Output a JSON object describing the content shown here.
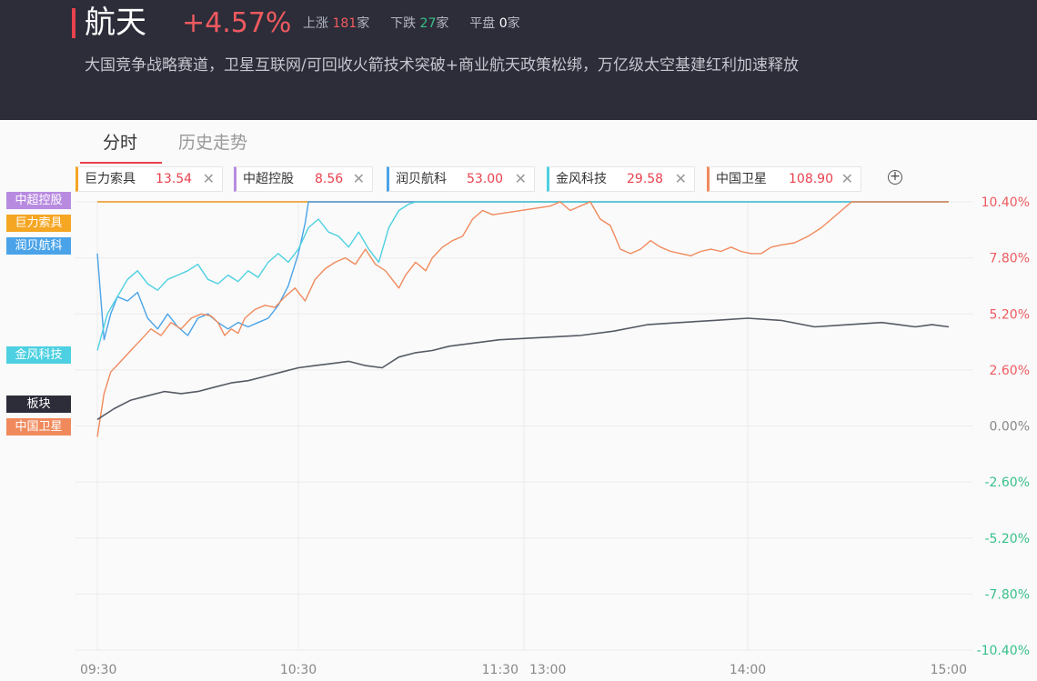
{
  "header": {
    "title": "航天",
    "change": "+4.57%",
    "up_label": "上涨",
    "up_count": "181",
    "unit": "家",
    "down_label": "下跌",
    "down_count": "27",
    "flat_label": "平盘",
    "flat_count": "0",
    "description": "大国竞争战略赛道，卫星互联网/可回收火箭技术突破+商业航天政策松绑，万亿级太空基建红利加速释放"
  },
  "tabs": [
    {
      "label": "分时"
    },
    {
      "label": "历史走势"
    }
  ],
  "colors": {
    "accent": "#e8424e",
    "up": "#ee5a5f",
    "down": "#38c08a",
    "sector_line": "#555a65"
  },
  "stock_chips": [
    {
      "name": "巨力索具",
      "price": "13.54",
      "color": "#f5a623"
    },
    {
      "name": "中超控股",
      "price": "8.56",
      "color": "#b88be0"
    },
    {
      "name": "润贝航科",
      "price": "53.00",
      "color": "#4aa3e8"
    },
    {
      "name": "金风科技",
      "price": "29.58",
      "color": "#4dd0e1"
    },
    {
      "name": "中国卫星",
      "price": "108.90",
      "color": "#f08a5d"
    }
  ],
  "add_icon": "plus-circle-icon",
  "close_icon": "close-x-icon",
  "chart_data": {
    "type": "line",
    "y_unit": "%",
    "ylim": [
      -10.4,
      10.4
    ],
    "y_ticks": [
      "10.40%",
      "7.80%",
      "5.20%",
      "2.60%",
      "0.00%",
      "-2.60%",
      "-5.20%",
      "-7.80%",
      "-10.40%"
    ],
    "x_ticks": [
      "09:30",
      "10:30",
      "11:30",
      "13:00",
      "14:00",
      "15:00"
    ],
    "grid": true,
    "series_labels": [
      {
        "text": "中超控股",
        "color": "#b88be0",
        "value": 10.4
      },
      {
        "text": "巨力索具",
        "color": "#f5a623",
        "value": 10.4
      },
      {
        "text": "润贝航科",
        "color": "#4aa3e8",
        "value": 10.4
      },
      {
        "text": "金风科技",
        "color": "#4dd0e1",
        "value": 10.4
      },
      {
        "text": "板块",
        "color": "#2c2d39",
        "value": 4.57
      },
      {
        "text": "中国卫星",
        "color": "#f08a5d",
        "value": 10.4
      }
    ],
    "series": [
      {
        "name": "板块",
        "color": "#555a65",
        "points": [
          [
            0,
            0.3
          ],
          [
            5,
            0.8
          ],
          [
            10,
            1.2
          ],
          [
            15,
            1.4
          ],
          [
            20,
            1.6
          ],
          [
            25,
            1.5
          ],
          [
            30,
            1.6
          ],
          [
            35,
            1.8
          ],
          [
            40,
            2.0
          ],
          [
            45,
            2.1
          ],
          [
            50,
            2.3
          ],
          [
            55,
            2.5
          ],
          [
            60,
            2.7
          ],
          [
            65,
            2.8
          ],
          [
            70,
            2.9
          ],
          [
            75,
            3.0
          ],
          [
            80,
            2.8
          ],
          [
            85,
            2.7
          ],
          [
            90,
            3.2
          ],
          [
            95,
            3.4
          ],
          [
            100,
            3.5
          ],
          [
            105,
            3.7
          ],
          [
            110,
            3.8
          ],
          [
            115,
            3.9
          ],
          [
            120,
            4.0
          ],
          [
            130,
            4.2
          ],
          [
            140,
            4.4
          ],
          [
            150,
            4.7
          ],
          [
            160,
            4.8
          ],
          [
            170,
            4.9
          ],
          [
            180,
            5.0
          ],
          [
            190,
            4.9
          ],
          [
            200,
            4.6
          ],
          [
            210,
            4.7
          ],
          [
            220,
            4.8
          ],
          [
            225,
            4.7
          ],
          [
            230,
            4.6
          ],
          [
            235,
            4.7
          ],
          [
            240,
            4.6
          ]
        ]
      },
      {
        "name": "中国卫星",
        "color": "#f08a5d",
        "points": [
          [
            0,
            -0.5
          ],
          [
            2,
            1.5
          ],
          [
            4,
            2.5
          ],
          [
            7,
            3.0
          ],
          [
            10,
            3.5
          ],
          [
            13,
            4.0
          ],
          [
            16,
            4.5
          ],
          [
            19,
            4.2
          ],
          [
            22,
            4.8
          ],
          [
            25,
            4.5
          ],
          [
            28,
            5.0
          ],
          [
            31,
            5.2
          ],
          [
            34,
            5.1
          ],
          [
            36,
            4.8
          ],
          [
            38,
            4.2
          ],
          [
            40,
            4.5
          ],
          [
            42,
            4.3
          ],
          [
            44,
            5.0
          ],
          [
            47,
            5.4
          ],
          [
            50,
            5.6
          ],
          [
            53,
            5.5
          ],
          [
            56,
            6.0
          ],
          [
            59,
            6.4
          ],
          [
            62,
            5.8
          ],
          [
            65,
            6.8
          ],
          [
            68,
            7.3
          ],
          [
            71,
            7.6
          ],
          [
            74,
            7.8
          ],
          [
            77,
            7.5
          ],
          [
            80,
            8.2
          ],
          [
            83,
            7.5
          ],
          [
            86,
            7.2
          ],
          [
            88,
            6.8
          ],
          [
            90,
            6.4
          ],
          [
            92,
            7.0
          ],
          [
            95,
            7.6
          ],
          [
            98,
            7.2
          ],
          [
            100,
            7.8
          ],
          [
            103,
            8.3
          ],
          [
            106,
            8.6
          ],
          [
            109,
            8.8
          ],
          [
            112,
            9.6
          ],
          [
            115,
            10.0
          ],
          [
            118,
            9.8
          ],
          [
            121,
            10.2
          ],
          [
            124,
            10.4
          ],
          [
            127,
            10.0
          ],
          [
            130,
            10.2
          ],
          [
            133,
            10.4
          ],
          [
            136,
            9.6
          ],
          [
            139,
            9.3
          ],
          [
            142,
            8.2
          ],
          [
            145,
            8.0
          ],
          [
            148,
            8.2
          ],
          [
            151,
            8.6
          ],
          [
            154,
            8.3
          ],
          [
            157,
            8.1
          ],
          [
            160,
            8.0
          ],
          [
            163,
            7.9
          ],
          [
            166,
            8.1
          ],
          [
            169,
            8.2
          ],
          [
            172,
            8.1
          ],
          [
            175,
            8.3
          ],
          [
            178,
            8.1
          ],
          [
            181,
            8.0
          ],
          [
            184,
            8.0
          ],
          [
            187,
            8.3
          ],
          [
            190,
            8.4
          ],
          [
            194,
            8.5
          ],
          [
            198,
            8.8
          ],
          [
            202,
            9.2
          ],
          [
            205,
            9.6
          ],
          [
            208,
            10.0
          ],
          [
            211,
            10.4
          ],
          [
            240,
            10.4
          ]
        ]
      },
      {
        "name": "润贝航科",
        "color": "#4aa3e8",
        "points": [
          [
            0,
            8.0
          ],
          [
            2,
            4.0
          ],
          [
            4,
            5.2
          ],
          [
            6,
            6.0
          ],
          [
            9,
            5.8
          ],
          [
            12,
            6.2
          ],
          [
            15,
            5.0
          ],
          [
            18,
            4.5
          ],
          [
            21,
            5.2
          ],
          [
            24,
            4.6
          ],
          [
            27,
            4.2
          ],
          [
            30,
            5.0
          ],
          [
            33,
            5.2
          ],
          [
            36,
            4.8
          ],
          [
            39,
            4.5
          ],
          [
            42,
            4.8
          ],
          [
            45,
            4.6
          ],
          [
            48,
            4.8
          ],
          [
            51,
            5.0
          ],
          [
            54,
            5.6
          ],
          [
            57,
            6.5
          ],
          [
            60,
            8.0
          ],
          [
            62,
            9.4
          ],
          [
            63,
            10.4
          ],
          [
            240,
            10.4
          ]
        ]
      },
      {
        "name": "金风科技",
        "color": "#4dd0e1",
        "points": [
          [
            0,
            3.5
          ],
          [
            3,
            5.2
          ],
          [
            6,
            6.0
          ],
          [
            9,
            6.8
          ],
          [
            12,
            7.2
          ],
          [
            15,
            6.6
          ],
          [
            18,
            6.3
          ],
          [
            21,
            6.8
          ],
          [
            24,
            7.0
          ],
          [
            27,
            7.2
          ],
          [
            30,
            7.5
          ],
          [
            33,
            6.8
          ],
          [
            36,
            6.6
          ],
          [
            39,
            7.0
          ],
          [
            42,
            6.7
          ],
          [
            45,
            7.2
          ],
          [
            48,
            6.9
          ],
          [
            51,
            7.6
          ],
          [
            54,
            8.0
          ],
          [
            57,
            7.6
          ],
          [
            60,
            8.2
          ],
          [
            63,
            9.2
          ],
          [
            66,
            9.6
          ],
          [
            69,
            9.0
          ],
          [
            72,
            8.8
          ],
          [
            75,
            8.3
          ],
          [
            78,
            9.0
          ],
          [
            81,
            8.2
          ],
          [
            84,
            7.6
          ],
          [
            87,
            9.2
          ],
          [
            90,
            10.0
          ],
          [
            93,
            10.3
          ],
          [
            95,
            10.4
          ],
          [
            240,
            10.4
          ]
        ]
      },
      {
        "name": "中超控股",
        "color": "#b88be0",
        "points": [
          [
            0,
            10.4
          ],
          [
            240,
            10.4
          ]
        ]
      },
      {
        "name": "巨力索具",
        "color": "#f5a623",
        "points": [
          [
            0,
            10.4
          ],
          [
            240,
            10.4
          ]
        ]
      }
    ]
  }
}
